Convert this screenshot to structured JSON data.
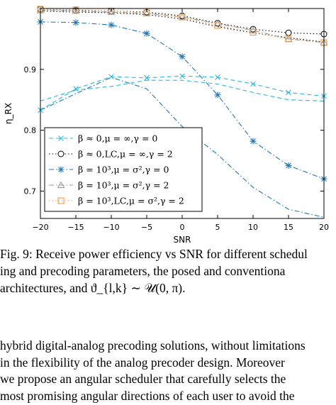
{
  "chart_data": {
    "type": "line",
    "title": "",
    "xlabel": "SNR",
    "ylabel": "η_RX",
    "xlim": [
      -20,
      20
    ],
    "ylim": [
      0.655,
      1.0
    ],
    "xticks": [
      -20,
      -15,
      -10,
      -5,
      0,
      5,
      10,
      15,
      20
    ],
    "xtick_labels": [
      "−20",
      "−15",
      "−10",
      "−5",
      "0",
      "5",
      "10",
      "15",
      "20"
    ],
    "yticks": [
      0.7,
      0.8,
      0.9
    ],
    "ytick_labels": [
      "0.7",
      "0.8",
      "0.9"
    ],
    "grid": false,
    "legend_position": "lower-left",
    "series": [
      {
        "legend_label": "β ≈ 0,μ = ∞,γ = 0",
        "color": "#2bb7e6",
        "dash": "dashed",
        "marker": "x",
        "x": [
          -20,
          -15,
          -10,
          -5,
          0,
          5,
          10,
          15,
          20
        ],
        "y": [
          0.833,
          0.868,
          0.888,
          0.886,
          0.889,
          0.887,
          0.876,
          0.862,
          0.856
        ]
      },
      {
        "legend_label": "β ≈ 0,LC,μ = ∞,γ = 2",
        "color": "#000000",
        "dash": "dotted",
        "marker": "circle",
        "x": [
          -20,
          -15,
          -10,
          -5,
          0,
          5,
          10,
          15,
          20
        ],
        "y": [
          0.999,
          0.997,
          0.996,
          0.994,
          0.988,
          0.976,
          0.966,
          0.96,
          0.958
        ]
      },
      {
        "legend_label": "β = 10³,μ = σ²,γ = 0",
        "color": "#1f77b4",
        "dash": "dashdot",
        "marker": "star",
        "x": [
          -20,
          -15,
          -10,
          -5,
          0,
          5,
          10,
          15,
          20
        ],
        "y": [
          0.978,
          0.977,
          0.973,
          0.959,
          0.921,
          0.858,
          0.782,
          0.742,
          0.72
        ]
      },
      {
        "legend_label": "β = 10³,μ = σ²,γ = 2",
        "color": "#999999",
        "dash": "dashdot",
        "marker": "triangle",
        "x": [
          -20,
          -15,
          -10,
          -5,
          0,
          5,
          10,
          15,
          20
        ],
        "y": [
          0.997,
          0.996,
          0.994,
          0.992,
          0.986,
          0.975,
          0.964,
          0.95,
          0.944
        ]
      },
      {
        "legend_label": "β = 10³,LC,μ = σ²,γ = 2",
        "color": "#f39a4c",
        "dash": "dotted",
        "marker": "square",
        "x": [
          -20,
          -15,
          -10,
          -5,
          0,
          5,
          10,
          15,
          20
        ],
        "y": [
          0.999,
          0.998,
          0.996,
          0.993,
          0.986,
          0.972,
          0.961,
          0.95,
          0.944
        ]
      }
    ],
    "unmarked_lines": [
      {
        "color": "#2bb7e6",
        "dash": "dashed",
        "x": [
          -20,
          -15,
          -10,
          -5,
          0,
          5,
          10,
          15,
          20
        ],
        "y": [
          0.848,
          0.866,
          0.872,
          0.882,
          0.882,
          0.876,
          0.862,
          0.85,
          0.848
        ]
      },
      {
        "color": "#1f77b4",
        "dash": "dashdot",
        "x": [
          -20,
          -15,
          -10,
          -5,
          0,
          5,
          10,
          15,
          20
        ],
        "y": [
          0.833,
          0.86,
          0.887,
          0.868,
          0.806,
          0.76,
          0.706,
          0.67,
          0.657
        ]
      },
      {
        "color": "#000000",
        "dash": "dotted",
        "x": [
          -20,
          -15,
          -10,
          -5,
          0,
          5,
          10,
          15,
          20
        ],
        "y": [
          0.996,
          0.994,
          0.993,
          0.99,
          0.983,
          0.97,
          0.96,
          0.952,
          0.945
        ]
      }
    ]
  },
  "caption": {
    "lines": [
      "Fig. 9: Receive power efficiency vs SNR for different schedul",
      "ing and precoding parameters, the posed and conventiona",
      "architectures, and ϑ_{l,k} ∼ 𝒰(0, π)."
    ]
  },
  "body": {
    "lines": [
      "hybrid digital-analog precoding solutions, without limitations",
      "in the flexibility of the analog precoder design. Moreover",
      "we propose an angular scheduler that carefully selects the",
      "most promising angular directions of each user to avoid the"
    ]
  }
}
